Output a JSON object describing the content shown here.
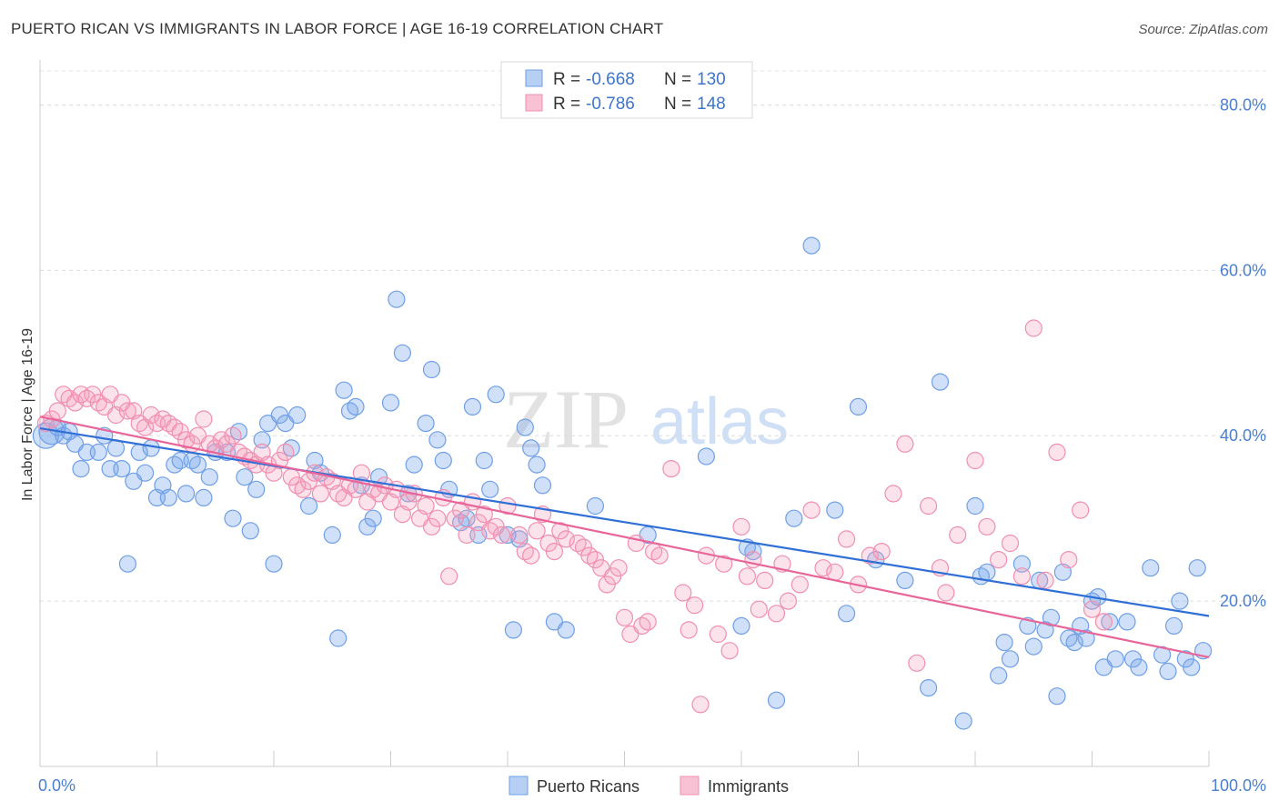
{
  "title": "PUERTO RICAN VS IMMIGRANTS IN LABOR FORCE | AGE 16-19 CORRELATION CHART",
  "source": "Source: ZipAtlas.com",
  "watermark": {
    "zip": "ZIP",
    "atlas": "atlas"
  },
  "legend": {
    "series1": {
      "r_label": "R = ",
      "r_value": "-0.668",
      "n_label": "N = ",
      "n_value": "130"
    },
    "series2": {
      "r_label": "R = ",
      "r_value": "-0.786",
      "n_label": "N = ",
      "n_value": "148"
    }
  },
  "chart_data": {
    "type": "scatter",
    "title": "PUERTO RICAN VS IMMIGRANTS IN LABOR FORCE | AGE 16-19 CORRELATION CHART",
    "xlabel": "",
    "ylabel": "In Labor Force | Age 16-19",
    "xlim": [
      0,
      100
    ],
    "ylim": [
      0,
      85
    ],
    "x_tick_labels": [
      "0.0%",
      "100.0%"
    ],
    "y_ticks": [
      20,
      40,
      60,
      80
    ],
    "y_tick_labels": [
      "20.0%",
      "40.0%",
      "60.0%",
      "80.0%"
    ],
    "colors": {
      "Puerto Ricans": "#6f9fe6",
      "Immigrants": "#f08fb0",
      "blue_line": "#2f6fd6",
      "pink_line": "#e8659a"
    },
    "series": [
      {
        "name": "Puerto Ricans",
        "trend": {
          "x": [
            0,
            100
          ],
          "y": [
            40.9,
            18.2
          ]
        },
        "points": [
          [
            0.5,
            40.0
          ],
          [
            1.0,
            40.5
          ],
          [
            1.5,
            41.0
          ],
          [
            2.0,
            40.0
          ],
          [
            2.5,
            40.5
          ],
          [
            3.0,
            39.0
          ],
          [
            3.5,
            36.0
          ],
          [
            4.0,
            38.0
          ],
          [
            5.0,
            38.0
          ],
          [
            5.5,
            40.0
          ],
          [
            6.0,
            36.0
          ],
          [
            6.5,
            38.5
          ],
          [
            7.0,
            36.0
          ],
          [
            7.5,
            24.5
          ],
          [
            8.0,
            34.5
          ],
          [
            8.5,
            38.0
          ],
          [
            9.0,
            35.5
          ],
          [
            9.5,
            38.5
          ],
          [
            10.0,
            32.5
          ],
          [
            10.5,
            34.0
          ],
          [
            11.0,
            32.5
          ],
          [
            11.5,
            36.5
          ],
          [
            12.0,
            37.0
          ],
          [
            12.5,
            33.0
          ],
          [
            13.0,
            37.0
          ],
          [
            13.5,
            36.5
          ],
          [
            14.0,
            32.5
          ],
          [
            14.5,
            35.0
          ],
          [
            15.0,
            38.0
          ],
          [
            16.0,
            38.0
          ],
          [
            16.5,
            30.0
          ],
          [
            17.0,
            40.5
          ],
          [
            17.5,
            35.0
          ],
          [
            18.0,
            28.5
          ],
          [
            18.5,
            33.5
          ],
          [
            19.0,
            39.5
          ],
          [
            19.5,
            41.5
          ],
          [
            20.0,
            24.5
          ],
          [
            20.5,
            42.5
          ],
          [
            21.0,
            41.5
          ],
          [
            21.5,
            38.5
          ],
          [
            22.0,
            42.5
          ],
          [
            23.0,
            31.5
          ],
          [
            23.5,
            37.0
          ],
          [
            24.0,
            35.5
          ],
          [
            25.0,
            28.0
          ],
          [
            25.5,
            15.5
          ],
          [
            26.0,
            45.5
          ],
          [
            26.5,
            43.0
          ],
          [
            27.0,
            43.5
          ],
          [
            27.5,
            34.0
          ],
          [
            28.0,
            29.0
          ],
          [
            28.5,
            30.0
          ],
          [
            29.0,
            35.0
          ],
          [
            30.0,
            44.0
          ],
          [
            30.5,
            56.5
          ],
          [
            31.0,
            50.0
          ],
          [
            31.5,
            33.0
          ],
          [
            32.0,
            36.5
          ],
          [
            33.0,
            41.5
          ],
          [
            33.5,
            48.0
          ],
          [
            34.0,
            39.5
          ],
          [
            34.5,
            37.0
          ],
          [
            35.0,
            33.5
          ],
          [
            36.0,
            29.5
          ],
          [
            36.5,
            30.0
          ],
          [
            37.0,
            43.5
          ],
          [
            37.5,
            28.0
          ],
          [
            38.0,
            37.0
          ],
          [
            38.5,
            33.5
          ],
          [
            39.0,
            45.0
          ],
          [
            40.0,
            28.0
          ],
          [
            40.5,
            16.5
          ],
          [
            41.0,
            27.5
          ],
          [
            41.5,
            41.0
          ],
          [
            42.0,
            38.5
          ],
          [
            42.5,
            36.5
          ],
          [
            43.0,
            34.0
          ],
          [
            44.0,
            17.5
          ],
          [
            45.0,
            16.5
          ],
          [
            47.5,
            31.5
          ],
          [
            52.0,
            28.0
          ],
          [
            57.0,
            37.5
          ],
          [
            60.0,
            17.0
          ],
          [
            61.0,
            26.0
          ],
          [
            63.0,
            8.0
          ],
          [
            64.5,
            30.0
          ],
          [
            66.0,
            63.0
          ],
          [
            68.0,
            31.0
          ],
          [
            69.0,
            18.5
          ],
          [
            70.0,
            43.5
          ],
          [
            71.5,
            25.0
          ],
          [
            76.0,
            9.5
          ],
          [
            77.0,
            46.5
          ],
          [
            79.0,
            5.5
          ],
          [
            80.0,
            31.5
          ],
          [
            80.5,
            23.0
          ],
          [
            81.0,
            23.5
          ],
          [
            82.0,
            11.0
          ],
          [
            82.5,
            15.0
          ],
          [
            83.0,
            13.0
          ],
          [
            84.0,
            24.5
          ],
          [
            84.5,
            17.0
          ],
          [
            85.0,
            14.5
          ],
          [
            85.5,
            22.5
          ],
          [
            86.0,
            16.5
          ],
          [
            86.5,
            18.0
          ],
          [
            87.0,
            8.5
          ],
          [
            87.5,
            23.5
          ],
          [
            88.0,
            15.5
          ],
          [
            88.5,
            15.0
          ],
          [
            89.0,
            17.0
          ],
          [
            89.5,
            15.5
          ],
          [
            90.0,
            20.0
          ],
          [
            90.5,
            20.5
          ],
          [
            91.0,
            12.0
          ],
          [
            91.5,
            17.5
          ],
          [
            92.0,
            13.0
          ],
          [
            93.0,
            17.5
          ],
          [
            93.5,
            13.0
          ],
          [
            94.0,
            12.0
          ],
          [
            95.0,
            24.0
          ],
          [
            96.0,
            13.5
          ],
          [
            96.5,
            11.5
          ],
          [
            97.0,
            17.0
          ],
          [
            97.5,
            20.0
          ],
          [
            98.0,
            13.0
          ],
          [
            98.5,
            12.0
          ],
          [
            99.0,
            24.0
          ],
          [
            99.5,
            14.0
          ],
          [
            60.5,
            26.5
          ],
          [
            74.0,
            22.5
          ]
        ]
      },
      {
        "name": "Immigrants",
        "trend": {
          "x": [
            0,
            100
          ],
          "y": [
            42.3,
            13.2
          ]
        },
        "points": [
          [
            0.5,
            41.5
          ],
          [
            1.0,
            42.0
          ],
          [
            1.5,
            43.0
          ],
          [
            2.0,
            45.0
          ],
          [
            2.5,
            44.5
          ],
          [
            3.0,
            44.0
          ],
          [
            3.5,
            45.0
          ],
          [
            4.0,
            44.5
          ],
          [
            4.5,
            45.0
          ],
          [
            5.0,
            44.0
          ],
          [
            5.5,
            43.5
          ],
          [
            6.0,
            45.0
          ],
          [
            6.5,
            42.5
          ],
          [
            7.0,
            44.0
          ],
          [
            7.5,
            43.0
          ],
          [
            8.0,
            43.0
          ],
          [
            8.5,
            41.5
          ],
          [
            9.0,
            41.0
          ],
          [
            9.5,
            42.5
          ],
          [
            10.0,
            41.5
          ],
          [
            10.5,
            42.0
          ],
          [
            11.0,
            41.5
          ],
          [
            11.5,
            41.0
          ],
          [
            12.0,
            40.5
          ],
          [
            12.5,
            39.5
          ],
          [
            13.0,
            39.0
          ],
          [
            13.5,
            40.0
          ],
          [
            14.0,
            42.0
          ],
          [
            14.5,
            39.0
          ],
          [
            15.0,
            38.5
          ],
          [
            15.5,
            39.5
          ],
          [
            16.0,
            39.0
          ],
          [
            16.5,
            40.0
          ],
          [
            17.0,
            38.0
          ],
          [
            17.5,
            37.5
          ],
          [
            18.0,
            37.0
          ],
          [
            18.5,
            36.5
          ],
          [
            19.0,
            38.0
          ],
          [
            19.5,
            36.5
          ],
          [
            20.0,
            35.5
          ],
          [
            20.5,
            37.0
          ],
          [
            21.0,
            38.0
          ],
          [
            21.5,
            35.0
          ],
          [
            22.0,
            34.0
          ],
          [
            22.5,
            33.5
          ],
          [
            23.0,
            34.5
          ],
          [
            23.5,
            35.5
          ],
          [
            24.0,
            33.0
          ],
          [
            24.5,
            35.0
          ],
          [
            25.0,
            34.5
          ],
          [
            25.5,
            33.0
          ],
          [
            26.0,
            32.5
          ],
          [
            26.5,
            34.0
          ],
          [
            27.0,
            33.5
          ],
          [
            27.5,
            35.5
          ],
          [
            28.0,
            32.0
          ],
          [
            28.5,
            33.5
          ],
          [
            29.0,
            33.0
          ],
          [
            29.5,
            34.0
          ],
          [
            30.0,
            32.0
          ],
          [
            30.5,
            33.5
          ],
          [
            31.0,
            30.5
          ],
          [
            31.5,
            32.0
          ],
          [
            32.0,
            33.0
          ],
          [
            32.5,
            30.0
          ],
          [
            33.0,
            31.5
          ],
          [
            33.5,
            29.0
          ],
          [
            34.0,
            30.0
          ],
          [
            34.5,
            32.5
          ],
          [
            35.0,
            23.0
          ],
          [
            35.5,
            30.0
          ],
          [
            36.0,
            31.0
          ],
          [
            36.5,
            28.0
          ],
          [
            37.0,
            32.0
          ],
          [
            37.5,
            29.5
          ],
          [
            38.0,
            30.5
          ],
          [
            38.5,
            28.5
          ],
          [
            39.0,
            29.0
          ],
          [
            39.5,
            28.0
          ],
          [
            40.0,
            31.5
          ],
          [
            41.0,
            28.0
          ],
          [
            41.5,
            26.0
          ],
          [
            42.0,
            25.5
          ],
          [
            42.5,
            28.5
          ],
          [
            43.0,
            30.5
          ],
          [
            43.5,
            27.0
          ],
          [
            44.0,
            26.0
          ],
          [
            44.5,
            28.5
          ],
          [
            45.0,
            27.5
          ],
          [
            46.0,
            27.0
          ],
          [
            46.5,
            26.5
          ],
          [
            47.0,
            25.5
          ],
          [
            47.5,
            25.0
          ],
          [
            48.0,
            24.0
          ],
          [
            48.5,
            22.0
          ],
          [
            49.0,
            23.0
          ],
          [
            49.5,
            24.0
          ],
          [
            50.0,
            18.0
          ],
          [
            50.5,
            16.0
          ],
          [
            51.0,
            27.0
          ],
          [
            51.5,
            17.0
          ],
          [
            52.0,
            17.5
          ],
          [
            52.5,
            26.0
          ],
          [
            53.0,
            25.5
          ],
          [
            54.0,
            36.0
          ],
          [
            55.0,
            21.0
          ],
          [
            55.5,
            16.5
          ],
          [
            56.0,
            19.5
          ],
          [
            56.5,
            7.5
          ],
          [
            57.0,
            25.5
          ],
          [
            58.0,
            16.0
          ],
          [
            58.5,
            24.5
          ],
          [
            59.0,
            14.0
          ],
          [
            60.0,
            29.0
          ],
          [
            60.5,
            23.0
          ],
          [
            61.0,
            25.0
          ],
          [
            61.5,
            19.0
          ],
          [
            62.0,
            22.5
          ],
          [
            63.0,
            18.5
          ],
          [
            63.5,
            24.5
          ],
          [
            64.0,
            20.0
          ],
          [
            65.0,
            22.0
          ],
          [
            66.0,
            31.0
          ],
          [
            67.0,
            24.0
          ],
          [
            68.0,
            23.5
          ],
          [
            69.0,
            27.5
          ],
          [
            70.0,
            22.0
          ],
          [
            71.0,
            25.5
          ],
          [
            72.0,
            26.0
          ],
          [
            73.0,
            33.0
          ],
          [
            74.0,
            39.0
          ],
          [
            75.0,
            12.5
          ],
          [
            76.0,
            31.5
          ],
          [
            77.0,
            24.0
          ],
          [
            77.5,
            21.0
          ],
          [
            78.5,
            28.0
          ],
          [
            80.0,
            37.0
          ],
          [
            81.0,
            29.0
          ],
          [
            82.0,
            25.0
          ],
          [
            83.0,
            27.0
          ],
          [
            84.0,
            23.0
          ],
          [
            85.0,
            53.0
          ],
          [
            86.0,
            22.5
          ],
          [
            87.0,
            38.0
          ],
          [
            88.0,
            25.0
          ],
          [
            89.0,
            31.0
          ],
          [
            90.0,
            19.0
          ],
          [
            91.0,
            17.5
          ]
        ]
      }
    ]
  },
  "bottom_legend": {
    "series1": "Puerto Ricans",
    "series2": "Immigrants"
  }
}
